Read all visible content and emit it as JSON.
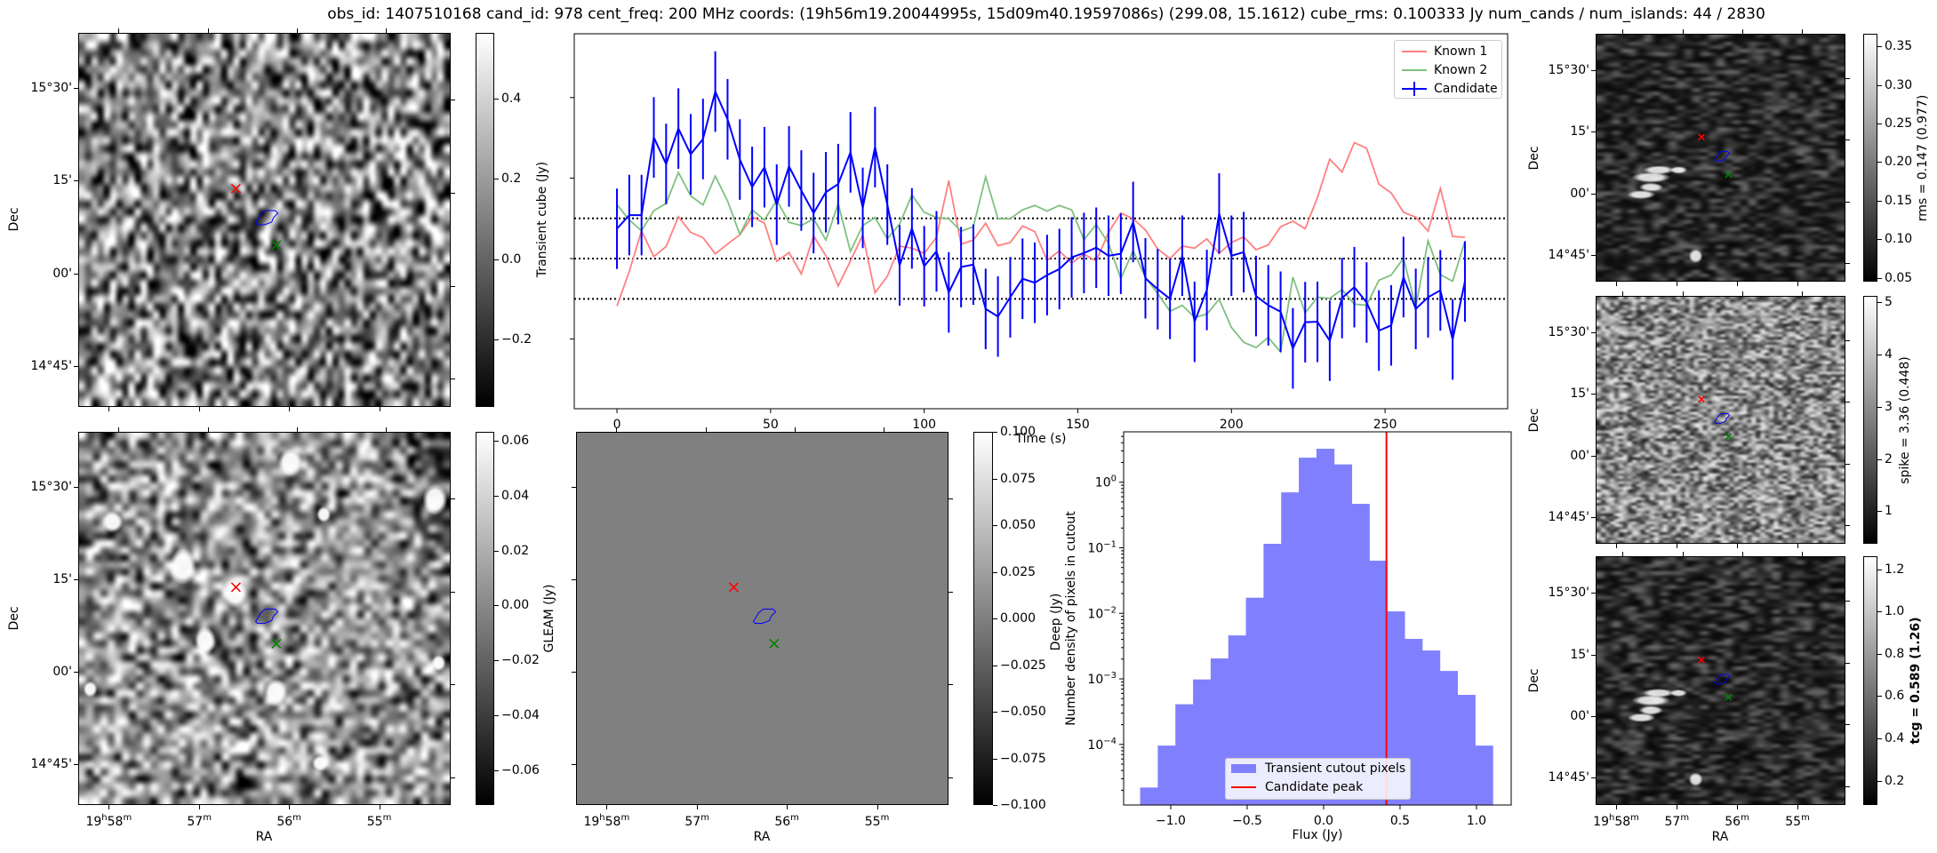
{
  "title": "obs_id: 1407510168 cand_id: 978 cent_freq: 200 MHz coords: (19h56m19.20044995s, 15d09m40.19597086s) (299.08, 15.1612) cube_rms: 0.100333 Jy num_cands / num_islands: 44 / 2830",
  "axes": {
    "ra_label": "RA",
    "dec_label": "Dec",
    "ra_ticks": [
      "19h58m",
      "57m",
      "56m",
      "55m"
    ],
    "dec_ticks": [
      "15°30'",
      "15'",
      "00'",
      "14°45'"
    ]
  },
  "colors": {
    "known1": "#ff8080",
    "known2": "#80c080",
    "candidate": "#0000ff",
    "hist": "#8080ff",
    "peak": "#ff0000",
    "marker_known1": "#ff0000",
    "marker_known2": "#008000",
    "contour": "#0000ff"
  },
  "panels": {
    "transient": {
      "colorbar_label": "Transient cube (Jy)",
      "vmin": -0.368,
      "vmax": 0.564,
      "ticks": [
        {
          "v": 0.4,
          "label": "0.4"
        },
        {
          "v": 0.2,
          "label": "0.2"
        },
        {
          "v": 0.0,
          "label": "0.0"
        },
        {
          "v": -0.2,
          "label": "−0.2"
        }
      ]
    },
    "gleam": {
      "colorbar_label": "GLEAM (Jy)",
      "vmin": -0.0726,
      "vmax": 0.0632,
      "ticks": [
        {
          "v": 0.06,
          "label": "0.06"
        },
        {
          "v": 0.04,
          "label": "0.04"
        },
        {
          "v": 0.02,
          "label": "0.02"
        },
        {
          "v": 0.0,
          "label": "0.00"
        },
        {
          "v": -0.02,
          "label": "−0.02"
        },
        {
          "v": -0.04,
          "label": "−0.04"
        },
        {
          "v": -0.06,
          "label": "−0.06"
        }
      ]
    },
    "deep": {
      "colorbar_label": "Deep (Jy)",
      "vmin": -0.1,
      "vmax": 0.1,
      "ticks": [
        {
          "v": 0.1,
          "label": "0.100"
        },
        {
          "v": 0.075,
          "label": "0.075"
        },
        {
          "v": 0.05,
          "label": "0.050"
        },
        {
          "v": 0.025,
          "label": "0.025"
        },
        {
          "v": 0.0,
          "label": "0.000"
        },
        {
          "v": -0.025,
          "label": "−0.025"
        },
        {
          "v": -0.05,
          "label": "−0.050"
        },
        {
          "v": -0.075,
          "label": "−0.075"
        },
        {
          "v": -0.1,
          "label": "−0.100"
        }
      ]
    },
    "rms": {
      "colorbar_label": "rms = 0.147 (0.977)",
      "vmin": 0.045,
      "vmax": 0.3665,
      "ticks": [
        {
          "v": 0.35,
          "label": "0.35"
        },
        {
          "v": 0.3,
          "label": "0.30"
        },
        {
          "v": 0.25,
          "label": "0.25"
        },
        {
          "v": 0.2,
          "label": "0.20"
        },
        {
          "v": 0.15,
          "label": "0.15"
        },
        {
          "v": 0.1,
          "label": "0.10"
        },
        {
          "v": 0.05,
          "label": "0.05"
        }
      ]
    },
    "spike": {
      "colorbar_label": "spike = 3.36 (0.448)",
      "vmin": 0.375,
      "vmax": 5.125,
      "ticks": [
        {
          "v": 5,
          "label": "5"
        },
        {
          "v": 4,
          "label": "4"
        },
        {
          "v": 3,
          "label": "3"
        },
        {
          "v": 2,
          "label": "2"
        },
        {
          "v": 1,
          "label": "1"
        }
      ]
    },
    "tcg": {
      "colorbar_label": "tcg = 0.589 (1.26)",
      "vmin": 0.085,
      "vmax": 1.262,
      "ticks": [
        {
          "v": 1.2,
          "label": "1.2"
        },
        {
          "v": 1.0,
          "label": "1.0"
        },
        {
          "v": 0.8,
          "label": "0.8"
        },
        {
          "v": 0.6,
          "label": "0.6"
        },
        {
          "v": 0.4,
          "label": "0.4"
        },
        {
          "v": 0.2,
          "label": "0.2"
        }
      ]
    }
  },
  "chart_data": [
    {
      "type": "line",
      "title": "",
      "xlabel": "Time (s)",
      "ylabel": "",
      "xlim": [
        -13.9,
        289.9
      ],
      "ylim": [
        -0.373,
        0.5585
      ],
      "xticks": [
        {
          "v": 0,
          "label": "0"
        },
        {
          "v": 50,
          "label": "50"
        },
        {
          "v": 100,
          "label": "100"
        },
        {
          "v": 150,
          "label": "150"
        },
        {
          "v": 200,
          "label": "200"
        },
        {
          "v": 250,
          "label": "250"
        }
      ],
      "yticks": [
        0.4,
        0.2,
        0.0,
        -0.2
      ],
      "hlines": [
        0.1,
        0.0,
        -0.1
      ],
      "legend_placement": "top-right",
      "x": [
        0,
        4,
        8,
        12,
        16,
        20,
        24,
        28,
        32,
        36,
        40,
        44,
        48,
        52,
        56,
        60,
        64,
        68,
        72,
        76,
        80,
        84,
        88,
        92,
        96,
        100,
        104,
        108,
        112,
        116,
        120,
        124,
        128,
        132,
        136,
        140,
        144,
        148,
        152,
        156,
        160,
        164,
        168,
        172,
        176,
        180,
        184,
        188,
        192,
        196,
        200,
        204,
        208,
        212,
        216,
        220,
        224,
        228,
        232,
        236,
        240,
        244,
        248,
        252,
        256,
        260,
        264,
        268,
        272,
        276
      ],
      "series": [
        {
          "name": "Known 1",
          "values": [
            -0.118,
            -0.032,
            0.069,
            0.005,
            0.03,
            0.104,
            0.065,
            0.052,
            0.012,
            0.036,
            0.059,
            0.104,
            0.088,
            -0.007,
            0.015,
            -0.038,
            0.056,
            0.007,
            -0.068,
            -0.006,
            0.059,
            -0.085,
            -0.044,
            0.031,
            0.026,
            0.013,
            0.053,
            0.194,
            0.036,
            0.046,
            0.088,
            0.032,
            0.04,
            0.081,
            0.067,
            -0.004,
            0.019,
            -0.011,
            0.011,
            -0.006,
            0.065,
            0.113,
            0.099,
            0.071,
            0.024,
            0.0,
            0.031,
            0.026,
            0.049,
            0.013,
            0.04,
            0.054,
            0.022,
            0.034,
            0.079,
            0.093,
            0.074,
            0.152,
            0.247,
            0.215,
            0.288,
            0.274,
            0.185,
            0.163,
            0.115,
            0.103,
            0.068,
            0.174,
            0.055,
            0.053
          ]
        },
        {
          "name": "Known 2",
          "values": [
            0.134,
            0.096,
            0.069,
            0.119,
            0.137,
            0.214,
            0.156,
            0.133,
            0.205,
            0.143,
            0.06,
            0.121,
            0.096,
            0.145,
            0.09,
            0.082,
            0.099,
            0.046,
            0.136,
            0.018,
            0.082,
            0.102,
            0.049,
            0.086,
            0.158,
            0.115,
            0.102,
            0.099,
            0.068,
            0.079,
            0.203,
            0.099,
            0.099,
            0.121,
            0.132,
            0.118,
            0.132,
            0.121,
            0.047,
            0.085,
            0.038,
            -0.05,
            0.02,
            -0.046,
            -0.087,
            -0.131,
            -0.116,
            -0.146,
            -0.138,
            -0.101,
            -0.171,
            -0.208,
            -0.221,
            -0.196,
            -0.232,
            -0.046,
            -0.135,
            -0.096,
            -0.099,
            -0.077,
            -0.113,
            -0.116,
            -0.054,
            -0.041,
            0.001,
            -0.12,
            0.044,
            -0.04,
            -0.056,
            0.043
          ]
        },
        {
          "name": "Candidate",
          "yerr": 0.1,
          "values": [
            0.074,
            0.108,
            0.108,
            0.301,
            0.235,
            0.323,
            0.259,
            0.297,
            0.415,
            0.346,
            0.246,
            0.178,
            0.227,
            0.134,
            0.229,
            0.169,
            0.113,
            0.165,
            0.185,
            0.264,
            0.126,
            0.277,
            0.134,
            -0.017,
            0.075,
            -0.019,
            0.018,
            -0.084,
            -0.021,
            -0.015,
            -0.125,
            -0.144,
            -0.096,
            -0.05,
            -0.06,
            -0.041,
            -0.026,
            0.003,
            0.014,
            0.027,
            0.007,
            0.012,
            0.091,
            -0.049,
            -0.076,
            -0.1,
            0.007,
            -0.157,
            -0.078,
            0.112,
            0.007,
            0.016,
            -0.093,
            -0.116,
            -0.132,
            -0.223,
            -0.158,
            -0.157,
            -0.204,
            -0.098,
            -0.071,
            -0.109,
            -0.179,
            -0.166,
            -0.046,
            -0.125,
            -0.096,
            -0.079,
            -0.201,
            -0.057
          ]
        }
      ]
    },
    {
      "type": "bar",
      "title": "",
      "xlabel": "Flux (Jy)",
      "ylabel": "Number density of pixels in cutout",
      "yscale": "log",
      "xlim": [
        -1.308,
        1.227
      ],
      "ylim": [
        1.19e-05,
        5.87
      ],
      "xticks": [
        {
          "v": -1.0,
          "label": "−1.0"
        },
        {
          "v": -0.5,
          "label": "−0.5"
        },
        {
          "v": 0.0,
          "label": "0.0"
        },
        {
          "v": 0.5,
          "label": "0.5"
        },
        {
          "v": 1.0,
          "label": "1.0"
        }
      ],
      "yticks": [
        {
          "v": 1,
          "base": "10",
          "exp": "0"
        },
        {
          "v": 0.1,
          "base": "10",
          "exp": "−1"
        },
        {
          "v": 0.01,
          "base": "10",
          "exp": "−2"
        },
        {
          "v": 0.001,
          "base": "10",
          "exp": "−3"
        },
        {
          "v": 0.0001,
          "base": "10",
          "exp": "−4"
        }
      ],
      "bin_start": -1.2,
      "bin_width": 0.1153,
      "values": [
        2.2e-05,
        9.6e-05,
        0.00041,
        0.00098,
        0.00205,
        0.0046,
        0.0173,
        0.115,
        0.7,
        2.37,
        3.24,
        1.87,
        0.468,
        0.0635,
        0.0107,
        0.00407,
        0.00271,
        0.00132,
        0.00057,
        9.6e-05
      ],
      "candidate_peak": 0.411,
      "legend": [
        "Transient cutout pixels",
        "Candidate peak"
      ],
      "legend_placement": "lower-center"
    }
  ]
}
